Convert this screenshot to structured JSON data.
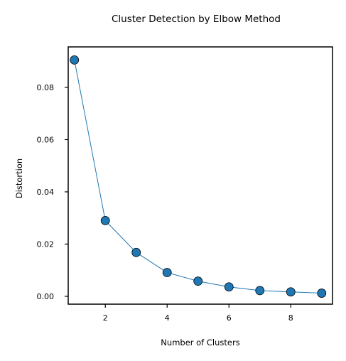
{
  "chart_data": {
    "type": "line",
    "title": "Cluster Detection by Elbow Method",
    "xlabel": "Number of Clusters",
    "ylabel": "Distortion",
    "x": [
      1,
      2,
      3,
      4,
      5,
      6,
      7,
      8,
      9
    ],
    "series": [
      {
        "values": [
          0.0905,
          0.029,
          0.0168,
          0.0091,
          0.0058,
          0.0036,
          0.0022,
          0.0017,
          0.0012
        ]
      }
    ],
    "xlim": [
      0.8,
      9.35
    ],
    "ylim": [
      -0.003,
      0.0955
    ],
    "xticks": [
      2,
      4,
      6,
      8
    ],
    "yticks": [
      0.0,
      0.02,
      0.04,
      0.06,
      0.08
    ],
    "ytick_labels": [
      "0.00",
      "0.02",
      "0.04",
      "0.06",
      "0.08"
    ],
    "xtick_labels": [
      "2",
      "4",
      "6",
      "8"
    ],
    "markers": true,
    "grid": false,
    "colors": {
      "line": "#1f77b4",
      "marker_fill": "#1f77b4",
      "marker_edge": "#000000"
    }
  }
}
